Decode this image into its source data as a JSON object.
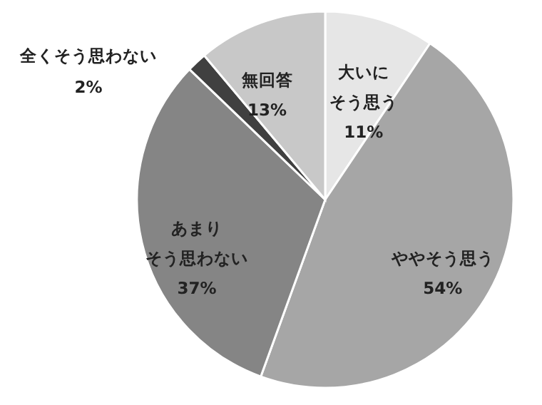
{
  "chart_data": {
    "type": "pie",
    "categories": [
      "大いにそう思う",
      "ややそう思う",
      "あまりそう思わない",
      "全くそう思わない",
      "無回答"
    ],
    "values": [
      11,
      54,
      37,
      2,
      13
    ],
    "value_labels": [
      "11%",
      "54%",
      "37%",
      "2%",
      "13%"
    ],
    "colors": [
      "#e6e6e6",
      "#a6a6a6",
      "#858585",
      "#404040",
      "#c8c8c8"
    ]
  }
}
